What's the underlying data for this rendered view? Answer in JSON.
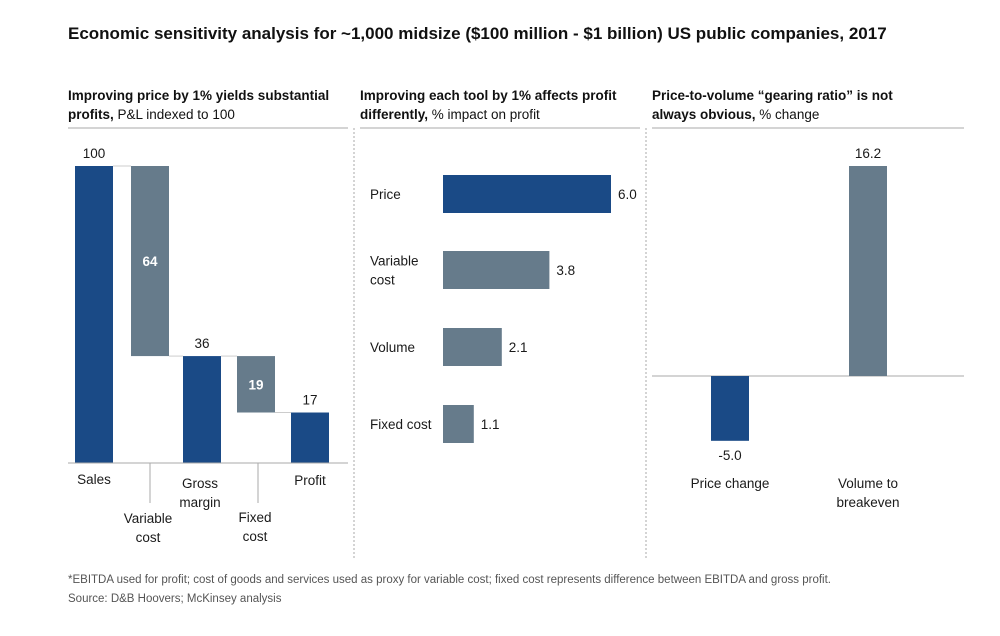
{
  "title": "Economic sensitivity analysis for ~1,000 midsize ($100 million - $1 billion) US public companies, 2017",
  "colors": {
    "dark": "#1a4a86",
    "gray": "#667b8b",
    "rule": "#aaaaaa",
    "text": "#1a1a1a"
  },
  "chart_data": [
    {
      "type": "bar",
      "subtype": "waterfall",
      "title_bold": "Improving price by 1% yields substantial profits,",
      "title_normal": " P&L indexed to 100",
      "categories": [
        "Sales",
        "Variable cost",
        "Gross margin",
        "Fixed cost",
        "Profit"
      ],
      "category_lines": [
        [
          "Sales"
        ],
        [
          "Variable",
          "cost"
        ],
        [
          "Gross",
          "margin"
        ],
        [
          "Fixed",
          "cost"
        ],
        [
          "Profit"
        ]
      ],
      "values": [
        100,
        64,
        36,
        19,
        17
      ],
      "value_labels": [
        "100",
        "64",
        "36",
        "19",
        "17"
      ],
      "kinds": [
        "total",
        "decrease",
        "total",
        "decrease",
        "total"
      ],
      "ylim": [
        0,
        100
      ]
    },
    {
      "type": "bar",
      "orientation": "horizontal",
      "title_bold": "Improving each tool by 1% affects profit differently,",
      "title_normal": " % impact on profit",
      "categories": [
        "Price",
        "Variable cost",
        "Volume",
        "Fixed cost"
      ],
      "category_lines": [
        [
          "Price"
        ],
        [
          "Variable",
          "cost"
        ],
        [
          "Volume"
        ],
        [
          "Fixed cost"
        ]
      ],
      "values": [
        6.0,
        3.8,
        2.1,
        1.1
      ],
      "value_labels": [
        "6.0",
        "3.8",
        "2.1",
        "1.1"
      ],
      "highlight_index": 0,
      "xlim": [
        0,
        6.0
      ]
    },
    {
      "type": "bar",
      "title_bold": "Price-to-volume “gearing ratio” is not always obvious,",
      "title_normal": " % change",
      "categories": [
        "Price change",
        "Volume to breakeven"
      ],
      "category_lines": [
        [
          "Price change"
        ],
        [
          "Volume to",
          "breakeven"
        ]
      ],
      "values": [
        -5.0,
        16.2
      ],
      "value_labels": [
        "-5.0",
        "16.2"
      ],
      "ylim": [
        -5.0,
        16.2
      ]
    }
  ],
  "footnote": "*EBITDA used for profit; cost of goods and services used as proxy for variable cost; fixed cost represents difference between EBITDA and gross profit.",
  "source": "Source: D&B Hoovers; McKinsey analysis"
}
